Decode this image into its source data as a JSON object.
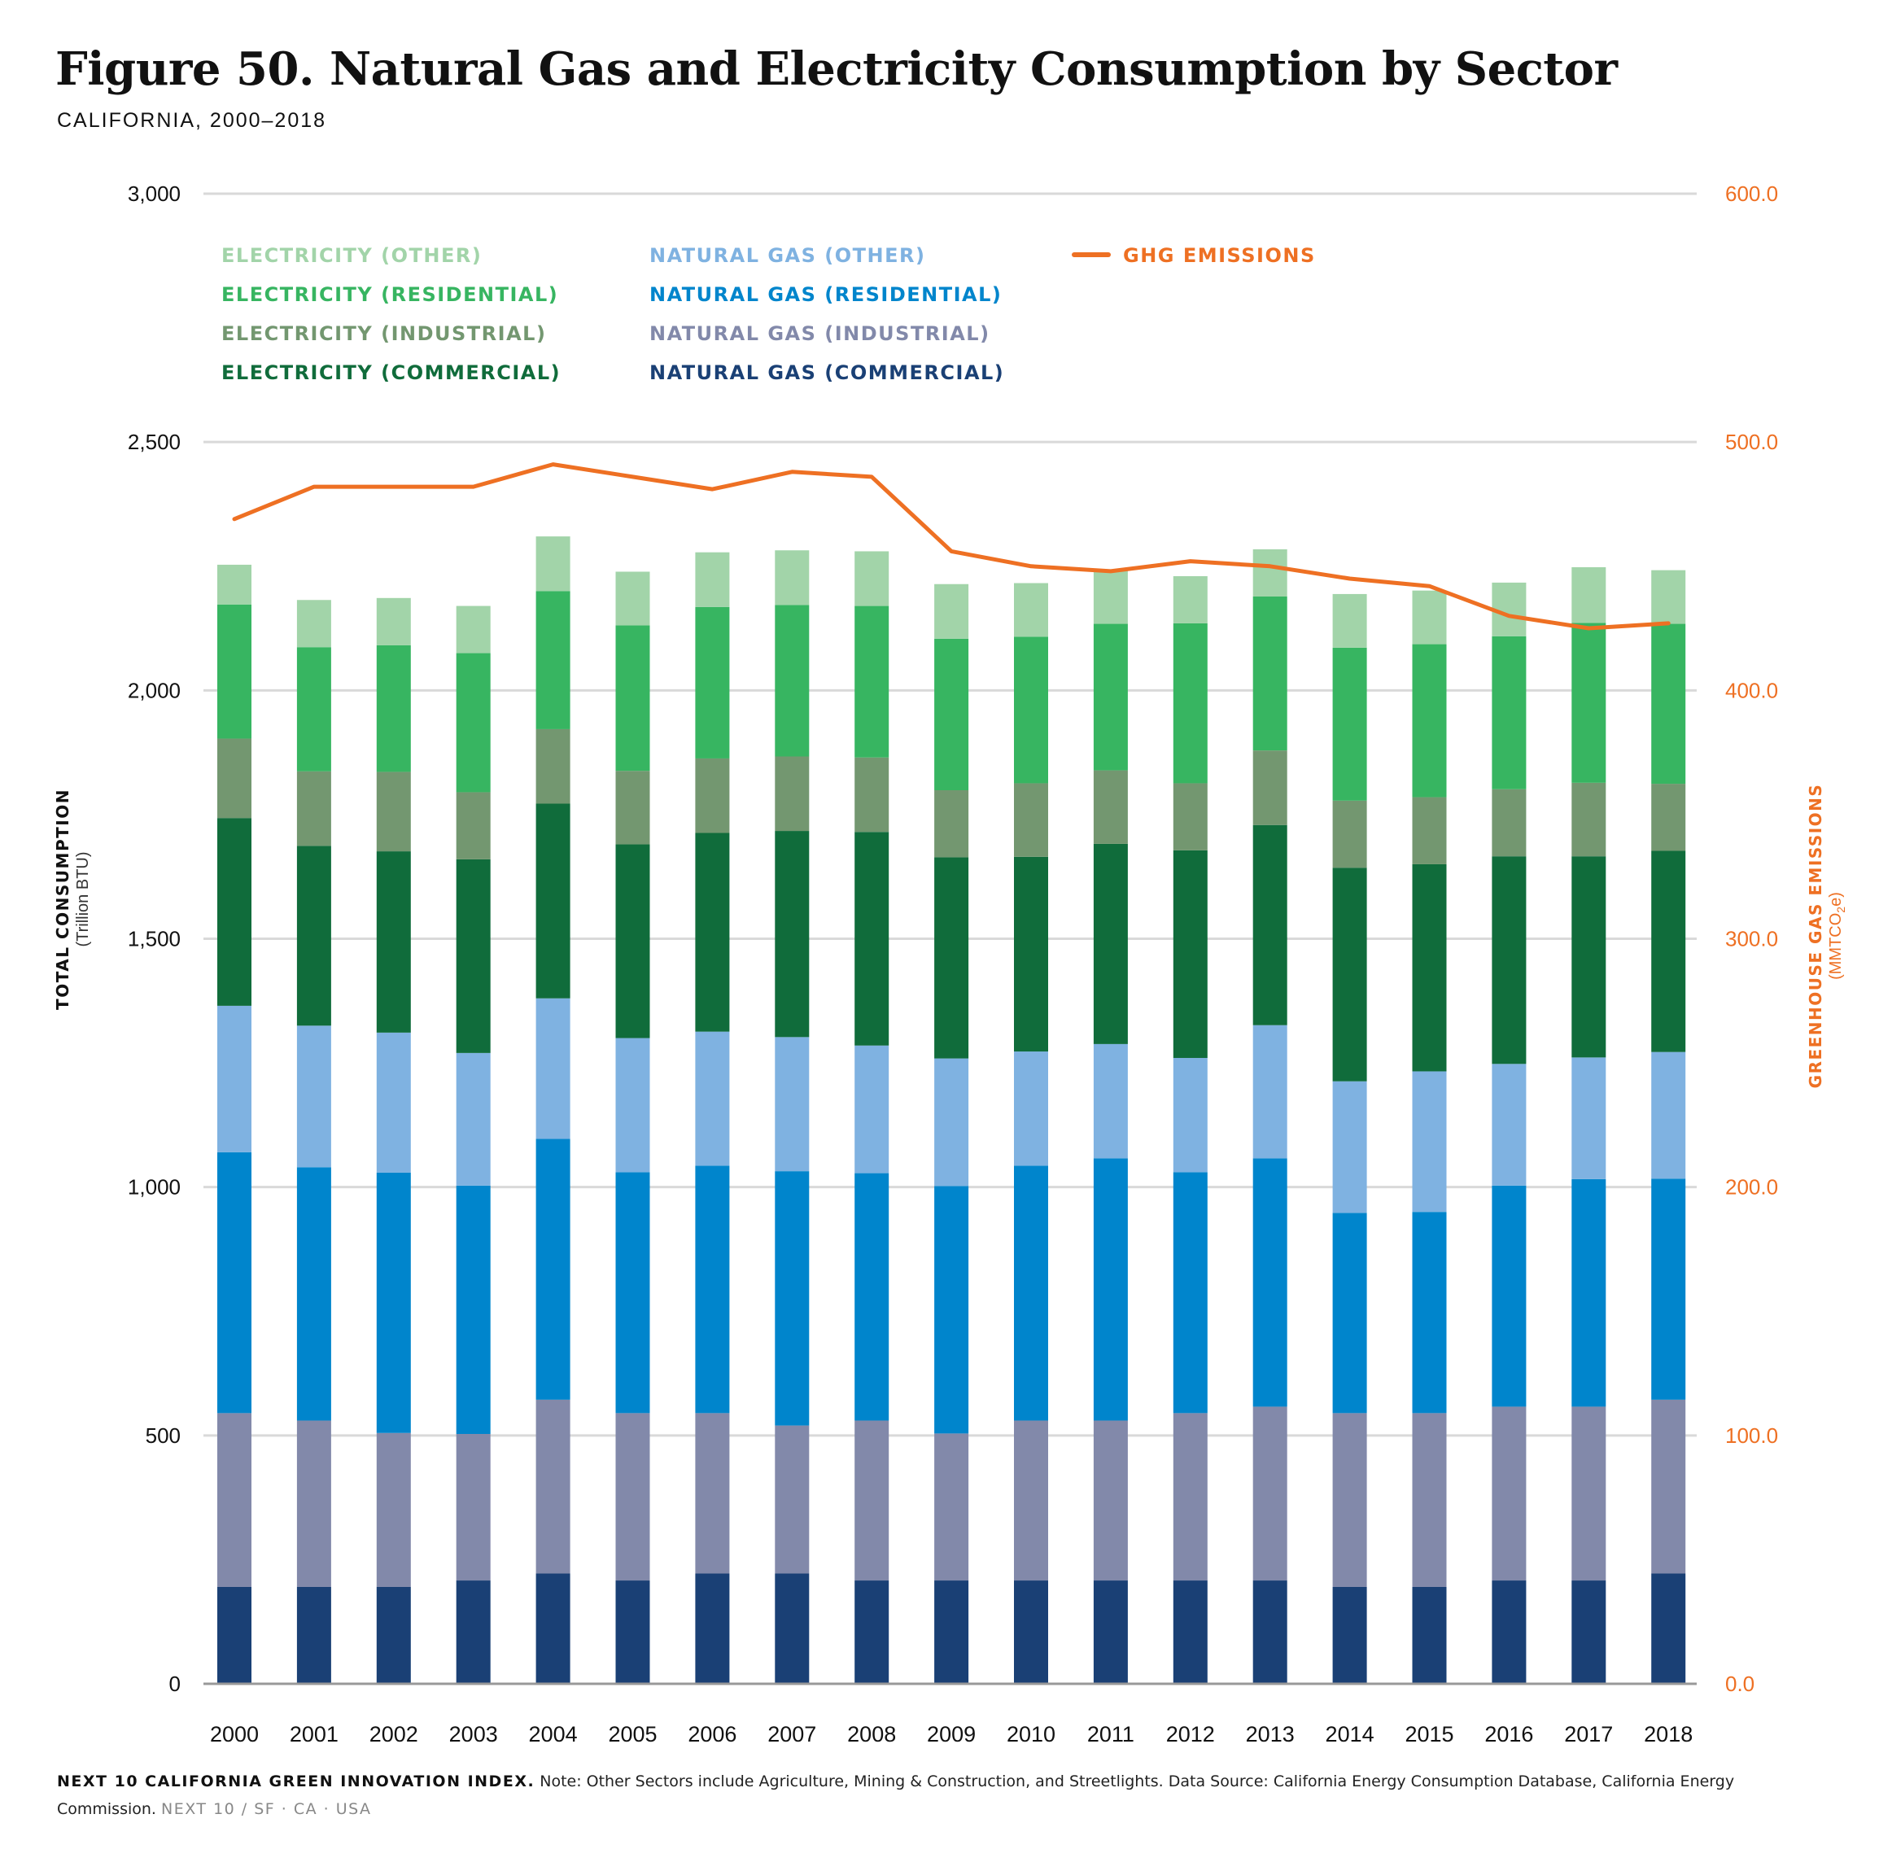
{
  "header": {
    "title": "Figure 50. Natural Gas and Electricity Consumption by Sector",
    "subtitle": "CALIFORNIA, 2000–2018"
  },
  "footer": {
    "brand": "NEXT 10 CALIFORNIA GREEN INNOVATION INDEX.",
    "note": "Note: Other Sectors include Agriculture, Mining & Construction, and Streetlights. Data Source: California Energy Consumption Database, California Energy Commission.",
    "tag": "NEXT 10  /  SF · CA · USA"
  },
  "chart_data": {
    "type": "bar",
    "stacked": true,
    "categories": [
      "2000",
      "2001",
      "2002",
      "2003",
      "2004",
      "2005",
      "2006",
      "2007",
      "2008",
      "2009",
      "2010",
      "2011",
      "2012",
      "2013",
      "2014",
      "2015",
      "2016",
      "2017",
      "2018"
    ],
    "y_left": {
      "label": "TOTAL CONSUMPTION",
      "unit": "(Trillion BTU)",
      "lim": [
        0,
        3000
      ],
      "ticks": [
        "0",
        "500",
        "1,000",
        "1,500",
        "2,000",
        "2,500",
        "3,000"
      ]
    },
    "y_right": {
      "label": "GREENHOUSE GAS EMISSIONS",
      "unit_prefix": "(MMTCO",
      "unit_sub": "2",
      "unit_suffix": "e)",
      "lim": [
        0,
        600
      ],
      "ticks": [
        "0.0",
        "100.0",
        "200.0",
        "300.0",
        "400.0",
        "500.0",
        "600.0"
      ]
    },
    "grid": true,
    "legend_position": "top-left",
    "series": [
      {
        "name": "NATURAL GAS (COMMERCIAL)",
        "color": "#1a4075",
        "values": [
          195,
          195,
          195,
          208,
          222,
          208,
          222,
          222,
          208,
          208,
          208,
          208,
          208,
          208,
          195,
          195,
          208,
          208,
          222
        ]
      },
      {
        "name": "NATURAL GAS (INDUSTRIAL)",
        "color": "#8289aa",
        "values": [
          350,
          335,
          310,
          295,
          350,
          337,
          323,
          298,
          322,
          296,
          322,
          322,
          337,
          350,
          350,
          350,
          350,
          350,
          350
        ]
      },
      {
        "name": "NATURAL GAS (RESIDENTIAL)",
        "color": "#0085cc",
        "values": [
          525,
          510,
          524,
          500,
          525,
          485,
          498,
          512,
          498,
          498,
          513,
          528,
          485,
          500,
          403,
          405,
          445,
          458,
          445
        ]
      },
      {
        "name": "NATURAL GAS (OTHER)",
        "color": "#7fb2e1",
        "values": [
          295,
          285,
          282,
          267,
          283,
          270,
          270,
          270,
          257,
          257,
          230,
          230,
          230,
          268,
          265,
          283,
          245,
          245,
          255
        ]
      },
      {
        "name": "ELECTRICITY (COMMERCIAL)",
        "color": "#106c3b",
        "values": [
          378,
          362,
          365,
          390,
          392,
          390,
          400,
          415,
          430,
          405,
          392,
          403,
          418,
          403,
          430,
          417,
          418,
          405,
          405
        ]
      },
      {
        "name": "ELECTRICITY (INDUSTRIAL)",
        "color": "#739770",
        "values": [
          160,
          150,
          160,
          135,
          150,
          148,
          150,
          150,
          150,
          135,
          148,
          148,
          135,
          150,
          135,
          135,
          135,
          148,
          135
        ]
      },
      {
        "name": "ELECTRICITY (RESIDENTIAL)",
        "color": "#37b561",
        "values": [
          270,
          250,
          255,
          280,
          278,
          293,
          305,
          305,
          305,
          305,
          295,
          295,
          322,
          310,
          308,
          308,
          308,
          322,
          322
        ]
      },
      {
        "name": "ELECTRICITY (OTHER)",
        "color": "#a2d4a9",
        "values": [
          80,
          95,
          95,
          95,
          110,
          108,
          110,
          110,
          110,
          110,
          108,
          108,
          95,
          95,
          108,
          108,
          108,
          112,
          108
        ]
      }
    ],
    "line": {
      "name": "GHG EMISSIONS",
      "color": "#ee7023",
      "axis": "right",
      "values": [
        469,
        482,
        482,
        482,
        491,
        486,
        481,
        488,
        486,
        456,
        450,
        448,
        452,
        450,
        445,
        442,
        430,
        425,
        427
      ]
    }
  }
}
